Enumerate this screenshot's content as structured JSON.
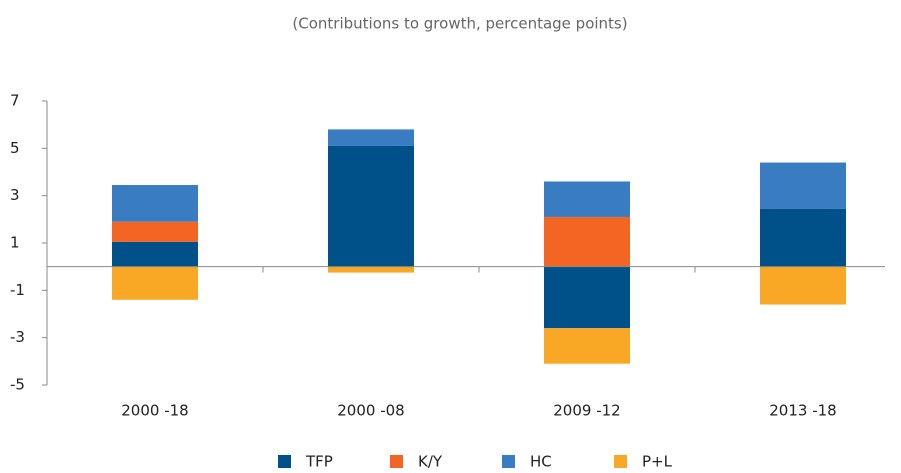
{
  "chart_data": {
    "type": "stacked_bar",
    "title": "(Contributions to growth, percentage points)",
    "categories": [
      "2000 -18",
      "2000 -08",
      "2009 -12",
      "2013 -18"
    ],
    "series": [
      {
        "name": "TFP",
        "color": "#00508a",
        "values": [
          1.05,
          5.1,
          -2.6,
          2.45
        ]
      },
      {
        "name": "K/Y",
        "color": "#f26522",
        "values": [
          0.85,
          0,
          2.1,
          0
        ]
      },
      {
        "name": "HC",
        "color": "#3a7cc2",
        "values": [
          1.55,
          0.7,
          1.5,
          1.95
        ]
      },
      {
        "name": "P+L",
        "color": "#f9a825",
        "values": [
          -1.4,
          -0.25,
          -1.5,
          -1.6
        ]
      }
    ],
    "ylim": [
      -5,
      7
    ],
    "yticks": [
      -5,
      -3,
      -1,
      1,
      3,
      5,
      7
    ],
    "legend": "bottom"
  }
}
